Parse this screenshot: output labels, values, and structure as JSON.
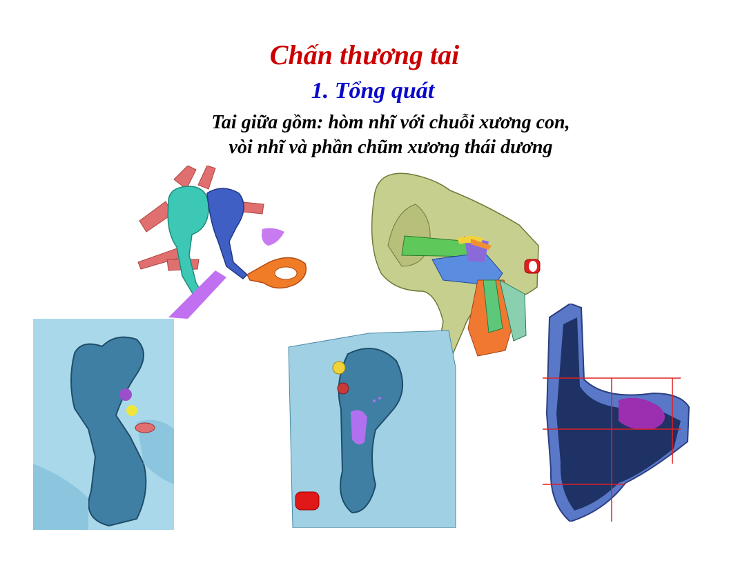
{
  "slide": {
    "title": "Chấn thương tai",
    "subtitle": "1. Tổng quát",
    "line1": "Tai giữa gồm: hòm nhĩ với chuỗi xương con,",
    "line2": "vòi nhĩ và phần chũm xương thái dương"
  },
  "colors": {
    "title": "#cc0000",
    "subtitle": "#0a0ac8",
    "body": "#000000",
    "anatomy_blue": "#9fd0e3",
    "anatomy_dark": "#2a6b8c"
  }
}
